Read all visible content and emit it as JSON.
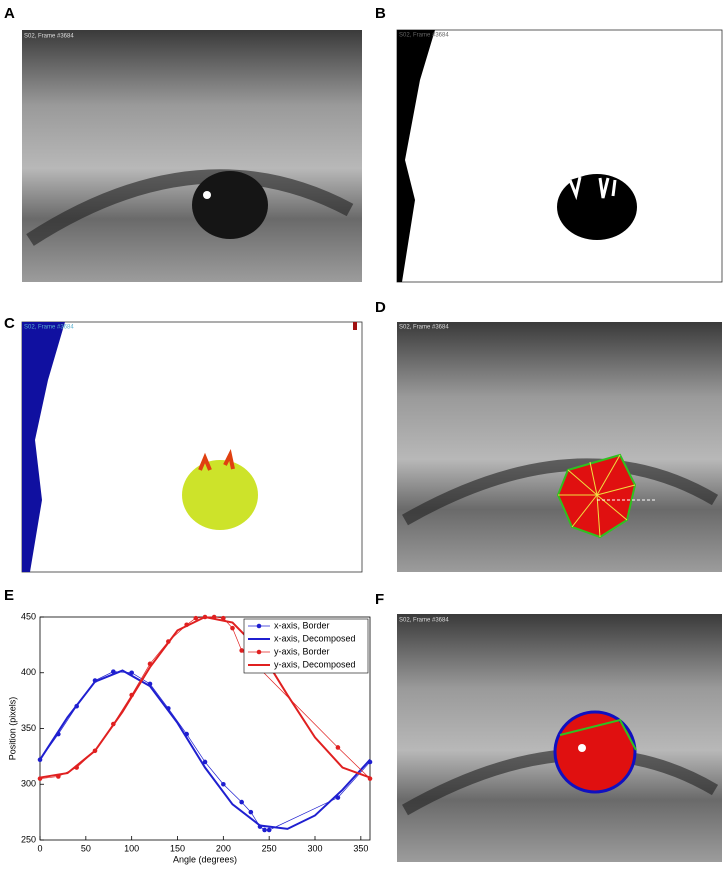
{
  "panels": [
    {
      "label": "A",
      "caption": "S02, Frame #3684"
    },
    {
      "label": "B",
      "caption": "S02, Frame #3684"
    },
    {
      "label": "C",
      "caption": "S02, Frame #3684"
    },
    {
      "label": "D",
      "caption": "S02, Frame #3684"
    },
    {
      "label": "E"
    },
    {
      "label": "F",
      "caption": "S02, Frame #3684"
    }
  ],
  "chart_data": {
    "type": "line",
    "x_label": "Angle (degrees)",
    "y_label": "Position (pixels)",
    "xlim": [
      0,
      360
    ],
    "xticks": [
      0,
      50,
      100,
      150,
      200,
      250,
      300,
      350
    ],
    "ylim": [
      250,
      450
    ],
    "yticks": [
      250,
      300,
      350,
      400,
      450
    ],
    "legend": "upper right",
    "series": [
      {
        "name": "x-axis, Border",
        "color": "#1f1fd0",
        "markers": true,
        "x": [
          0,
          20,
          40,
          60,
          80,
          100,
          120,
          140,
          160,
          180,
          200,
          220,
          230,
          240,
          245,
          250,
          325,
          360
        ],
        "values": [
          322,
          345,
          370,
          393,
          401,
          400,
          390,
          368,
          345,
          320,
          300,
          284,
          275,
          262,
          259,
          259,
          288,
          320
        ]
      },
      {
        "name": "x-axis, Decomposed",
        "color": "#1f1fd0",
        "markers": false,
        "x": [
          0,
          30,
          60,
          90,
          120,
          150,
          180,
          210,
          240,
          270,
          300,
          330,
          360
        ],
        "values": [
          322,
          360,
          392,
          402,
          388,
          355,
          315,
          282,
          263,
          260,
          272,
          295,
          322
        ]
      },
      {
        "name": "y-axis, Border",
        "color": "#e02020",
        "markers": true,
        "x": [
          0,
          20,
          40,
          60,
          80,
          100,
          120,
          140,
          160,
          170,
          180,
          190,
          200,
          210,
          220,
          325,
          360
        ],
        "values": [
          305,
          307,
          315,
          330,
          354,
          380,
          408,
          428,
          443,
          449,
          450,
          450,
          449,
          440,
          420,
          333,
          305
        ]
      },
      {
        "name": "y-axis, Decomposed",
        "color": "#e02020",
        "markers": false,
        "x": [
          0,
          30,
          60,
          90,
          120,
          150,
          180,
          210,
          240,
          270,
          300,
          330,
          360
        ],
        "values": [
          306,
          310,
          330,
          365,
          405,
          438,
          450,
          445,
          420,
          380,
          342,
          315,
          306
        ]
      }
    ]
  }
}
